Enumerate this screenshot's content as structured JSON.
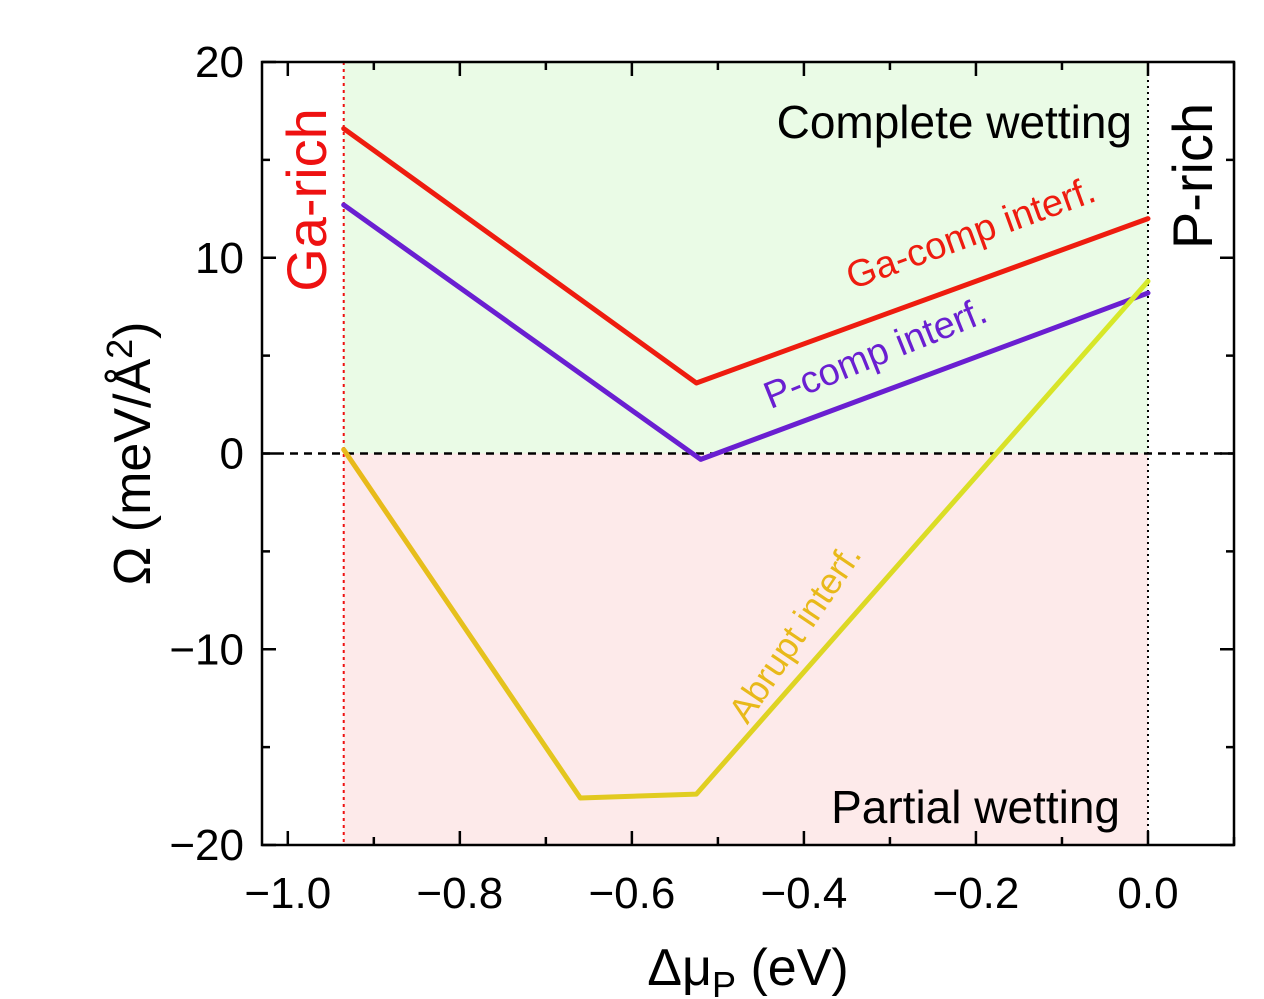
{
  "chart_data": {
    "type": "line",
    "title": "",
    "xlabel": {
      "main": "Δμ",
      "sub": "P",
      "unit": " (eV)"
    },
    "ylabel": {
      "main": "Ω (meV/Å",
      "sup": "2",
      "close": ")"
    },
    "xlim": [
      -1.03,
      0.1
    ],
    "ylim": [
      -20,
      20
    ],
    "xticks": [
      -1.0,
      -0.8,
      -0.6,
      -0.4,
      -0.2,
      0.0
    ],
    "xtick_labels": [
      "−1.0",
      "−0.8",
      "−0.6",
      "−0.4",
      "−0.2",
      "0.0"
    ],
    "yticks": [
      -20,
      -10,
      0,
      10,
      20
    ],
    "ytick_labels": [
      "−20",
      "−10",
      "0",
      "10",
      "20"
    ],
    "boundaries": {
      "ga_rich_x": -0.935,
      "p_rich_x": 0.0,
      "zero_line_y": 0
    },
    "regions": [
      {
        "name": "complete",
        "label": "Complete wetting",
        "color": "#eafbe6",
        "y_range": [
          0,
          20
        ]
      },
      {
        "name": "partial",
        "label": "Partial wetting",
        "color": "#fdeaea",
        "y_range": [
          -20,
          0
        ]
      }
    ],
    "edge_labels": {
      "ga_rich": {
        "text": "Ga-rich",
        "color": "#ee1111"
      },
      "p_rich": {
        "text": "P-rich",
        "color": "#000000"
      }
    },
    "series": [
      {
        "name": "Ga-comp interf.",
        "color": "#ee1c0f",
        "x": [
          -0.935,
          -0.525,
          0.0
        ],
        "y": [
          16.6,
          3.6,
          12.0
        ]
      },
      {
        "name": "P-comp interf.",
        "color": "#6a1fd1",
        "x": [
          -0.935,
          -0.52,
          0.0
        ],
        "y": [
          12.7,
          -0.3,
          8.2
        ]
      },
      {
        "name": "Abrupt interf.",
        "color_start": "#e8b91a",
        "color_end": "#d6ea2a",
        "x": [
          -0.935,
          -0.66,
          -0.525,
          0.0
        ],
        "y": [
          0.2,
          -17.6,
          -17.4,
          8.8
        ]
      }
    ]
  }
}
